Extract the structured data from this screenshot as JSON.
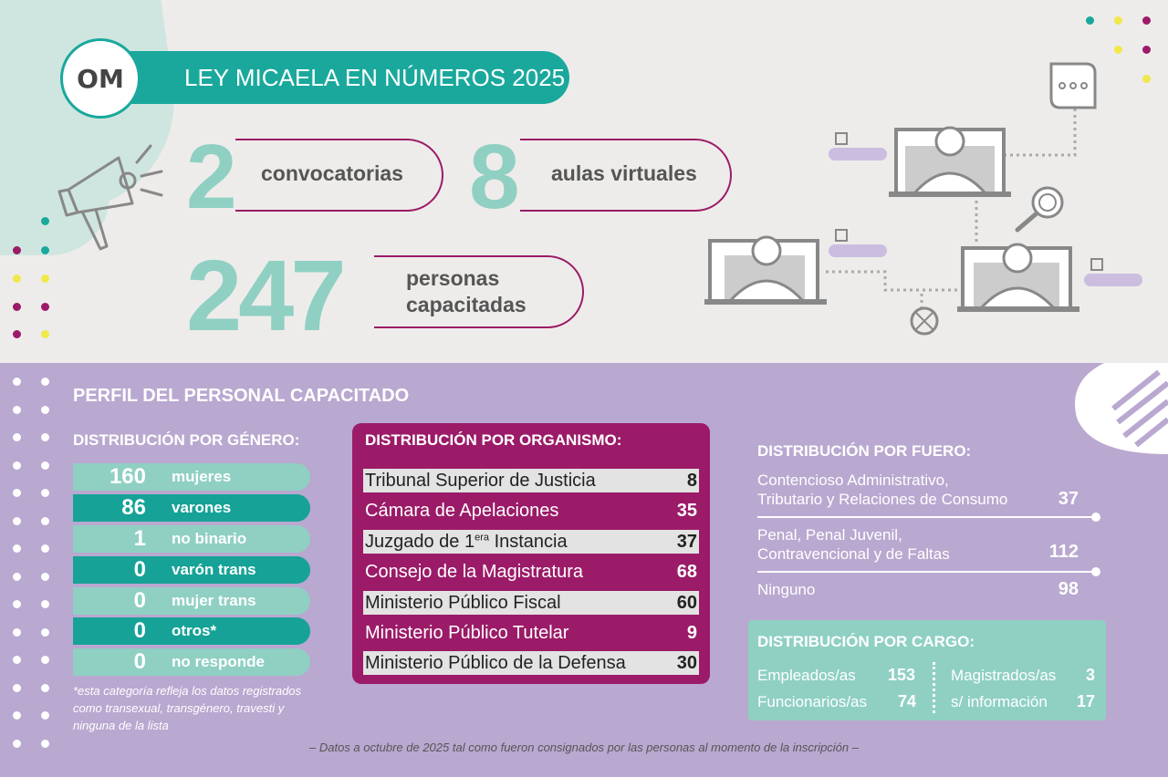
{
  "header": {
    "logo": "OM",
    "title": "LEY MICAELA EN NÚMEROS 2025"
  },
  "stats": {
    "convocatorias": {
      "value": "2",
      "label": "convocatorias"
    },
    "aulas": {
      "value": "8",
      "label": "aulas virtuales"
    },
    "personas": {
      "value": "247",
      "label_line1": "personas",
      "label_line2": "capacitadas"
    }
  },
  "perfil": {
    "title": "PERFIL DEL PERSONAL CAPACITADO"
  },
  "genero": {
    "title": "DISTRIBUCIÓN POR GÉNERO:",
    "rows": [
      {
        "value": "160",
        "label": "mujeres"
      },
      {
        "value": "86",
        "label": "varones"
      },
      {
        "value": "1",
        "label": "no binario"
      },
      {
        "value": "0",
        "label": "varón trans"
      },
      {
        "value": "0",
        "label": "mujer trans"
      },
      {
        "value": "0",
        "label": "otros*"
      },
      {
        "value": "0",
        "label": "no responde"
      }
    ],
    "note_line1": "*esta categoría refleja los datos registrados",
    "note_line2": "como transexual, transgénero, travesti y",
    "note_line3": "ninguna de la lista"
  },
  "organismo": {
    "title": "DISTRIBUCIÓN POR ORGANISMO:",
    "rows": [
      {
        "label": "Tribunal Superior de Justicia",
        "value": "8"
      },
      {
        "label": "Cámara de Apelaciones",
        "value": "35"
      },
      {
        "label_pre": "Juzgado de 1",
        "label_sup": "era",
        "label_post": " Instancia",
        "value": "37"
      },
      {
        "label": "Consejo de la Magistratura",
        "value": "68"
      },
      {
        "label": "Ministerio Público Fiscal",
        "value": "60"
      },
      {
        "label": "Ministerio Público Tutelar",
        "value": "9"
      },
      {
        "label": "Ministerio Público de la Defensa",
        "value": "30"
      }
    ]
  },
  "fuero": {
    "title": "DISTRIBUCIÓN POR FUERO:",
    "rows": [
      {
        "line1": "Contencioso Administrativo,",
        "line2": "Tributario y Relaciones de Consumo",
        "value": "37"
      },
      {
        "line1": "Penal, Penal Juvenil,",
        "line2": "Contravencional y de Faltas",
        "value": "112"
      },
      {
        "line1": "Ninguno",
        "line2": "",
        "value": "98"
      }
    ]
  },
  "cargo": {
    "title": "DISTRIBUCIÓN POR CARGO:",
    "empleados": {
      "label": "Empleados/as",
      "value": "153"
    },
    "funcionarios": {
      "label": "Funcionarios/as",
      "value": "74"
    },
    "magistrados": {
      "label": "Magistrados/as",
      "value": "3"
    },
    "sin_info": {
      "label": "s/ información",
      "value": "17"
    }
  },
  "footer": "– Datos a octubre de 2025 tal como fueron consignados por las personas al momento de la inscripción –",
  "colors": {
    "teal": "#1aa89c",
    "teal_light": "#8fd0c3",
    "magenta": "#9b1b68",
    "lavender": "#b9a8d0",
    "yellow": "#f1e84a"
  }
}
